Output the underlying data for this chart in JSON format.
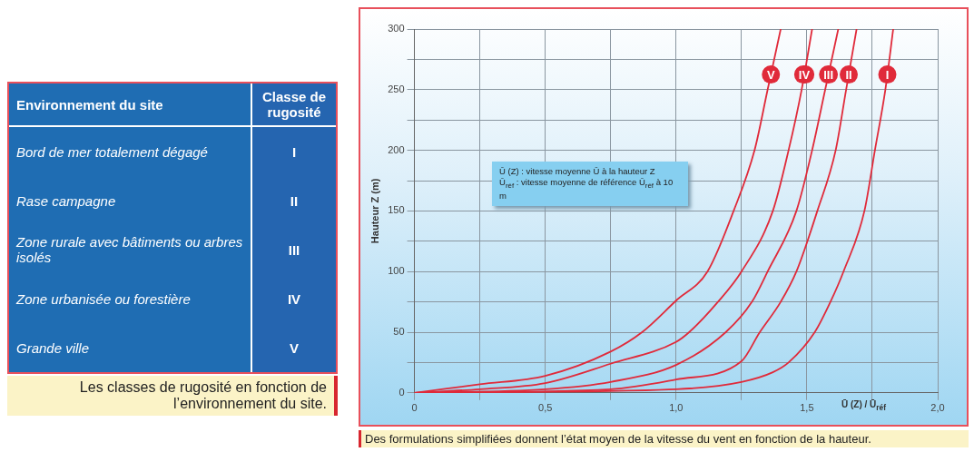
{
  "chart_data": [
    {
      "type": "other",
      "annotations": [
        "Environnement du site",
        "Classe de rugosité",
        "Bord de mer totalement dégagé",
        "I",
        "Rase campagne",
        "II",
        "Zone rurale avec bâtiments ou arbres isolés",
        "III",
        "Zone urbanisée ou forestière",
        "IV",
        "Grande ville",
        "V",
        "Les classes de rugosité en fonction de l’environnement du site."
      ]
    },
    {
      "type": "line",
      "ylabel": "Hauteur Z (m)",
      "xlabel": "Ū (Z) / Ū$_{réf}$",
      "xlim": [
        0,
        2
      ],
      "ylim": [
        0,
        300
      ],
      "xticks": [
        {
          "value": 0,
          "label": "0"
        },
        {
          "value": 0.25,
          "label": null
        },
        {
          "value": 0.5,
          "label": "0,5"
        },
        {
          "value": 0.75,
          "label": null
        },
        {
          "value": 1,
          "label": "1,0"
        },
        {
          "value": 1.25,
          "label": null
        },
        {
          "value": 1.5,
          "label": "1,5"
        },
        {
          "value": 1.75,
          "label": null
        },
        {
          "value": 2,
          "label": "2,0"
        }
      ],
      "yticks": [
        0,
        {
          "value": 25,
          "label": null
        },
        50,
        {
          "value": 75,
          "label": null
        },
        100,
        {
          "value": 125,
          "label": null
        },
        150,
        {
          "value": 175,
          "label": null
        },
        200,
        {
          "value": 225,
          "label": null
        },
        250,
        {
          "value": 275,
          "label": null
        },
        300
      ],
      "grid": true,
      "legend": "top right",
      "marker": "none",
      "line_style": "solid",
      "series": [
        {
          "name": "V",
          "color": "#e02a3a",
          "x": [
            0,
            0.25,
            0.5,
            0.75,
            0.87,
            1.0,
            1.12,
            1.22,
            1.3,
            1.35,
            1.4
          ],
          "values": [
            0,
            7,
            14,
            34,
            50,
            76,
            100,
            150,
            200,
            250,
            300
          ]
        },
        {
          "name": "IV",
          "color": "#e02a3a",
          "x": [
            0,
            0.25,
            0.5,
            0.75,
            1.0,
            1.05,
            1.16,
            1.25,
            1.37,
            1.43,
            1.48,
            1.52
          ],
          "values": [
            0,
            3,
            8,
            24,
            42,
            50,
            75,
            100,
            150,
            200,
            250,
            300
          ]
        },
        {
          "name": "III",
          "color": "#e02a3a",
          "x": [
            0,
            0.5,
            0.75,
            1.0,
            1.19,
            1.29,
            1.35,
            1.46,
            1.52,
            1.57,
            1.62
          ],
          "values": [
            0,
            3,
            9,
            23,
            50,
            75,
            100,
            150,
            200,
            250,
            300
          ]
        },
        {
          "name": "II",
          "color": "#e02a3a",
          "x": [
            0,
            0.75,
            1.0,
            1.25,
            1.32,
            1.4,
            1.46,
            1.54,
            1.61,
            1.65,
            1.69
          ],
          "values": [
            0,
            3,
            11,
            26,
            50,
            75,
            100,
            150,
            200,
            250,
            300
          ]
        },
        {
          "name": "I",
          "color": "#e02a3a",
          "x": [
            0,
            1.0,
            1.25,
            1.37,
            1.43,
            1.53,
            1.59,
            1.64,
            1.72,
            1.76,
            1.8,
            1.83
          ],
          "values": [
            0,
            3,
            9,
            17,
            25,
            50,
            75,
            100,
            150,
            200,
            250,
            300
          ]
        }
      ],
      "annotations": [
        "Ū (Z) : vitesse moyenne Ū à la hauteur Z",
        "Ū$_{réf}$ : vitesse moyenne de référence Ū$_{réf}$ à 10 m",
        "Des formulations simplifiées donnent l’état moyen de la vitesse du vent en fonction de la hauteur."
      ]
    }
  ]
}
